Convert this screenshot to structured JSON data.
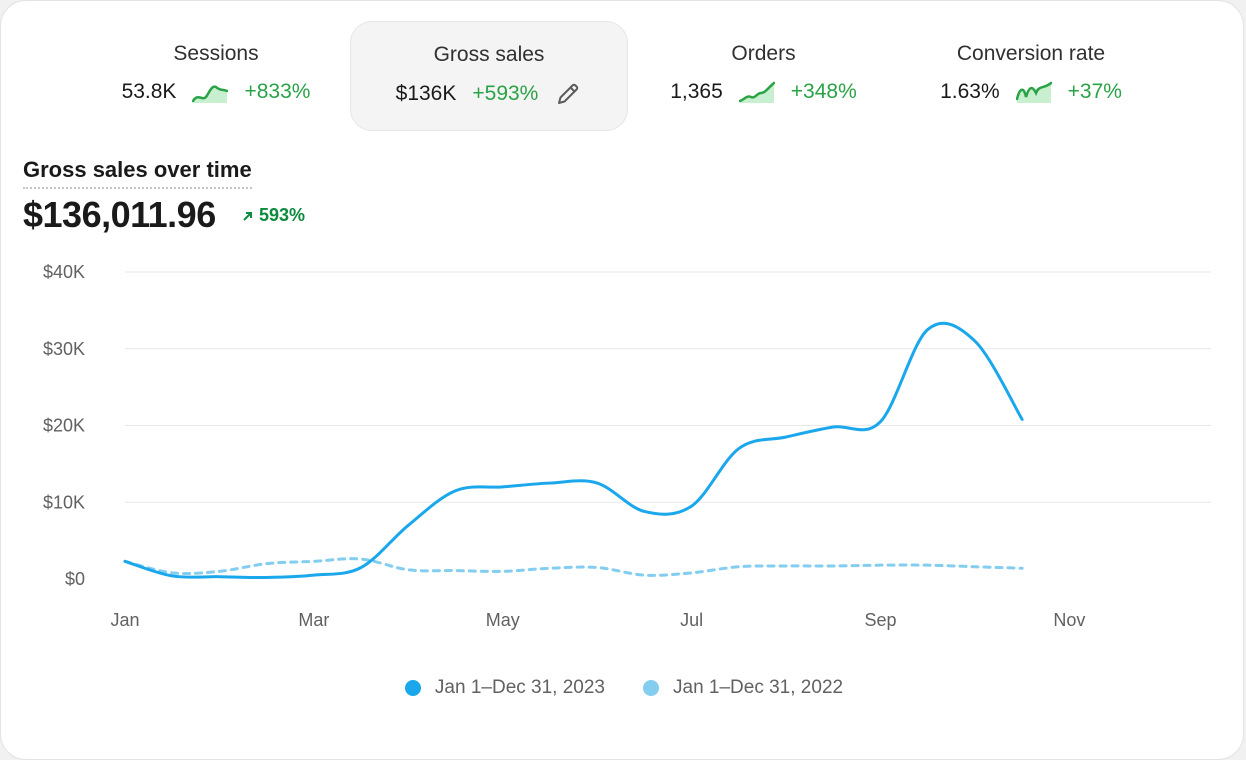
{
  "metrics": [
    {
      "label": "Sessions",
      "value": "53.8K",
      "change": "+833%",
      "active": false
    },
    {
      "label": "Gross sales",
      "value": "$136K",
      "change": "+593%",
      "active": true
    },
    {
      "label": "Orders",
      "value": "1,365",
      "change": "+348%",
      "active": false
    },
    {
      "label": "Conversion rate",
      "value": "1.63%",
      "change": "+37%",
      "active": false
    }
  ],
  "chart_title": "Gross sales over time",
  "total": "$136,011.96",
  "total_change": "593%",
  "colors": {
    "current": "#1aa7ec",
    "previous": "#82cdf0",
    "positive": "#29a346",
    "grid": "#e8e8e8"
  },
  "chart_data": {
    "type": "line",
    "title": "Gross sales over time",
    "x": [
      0,
      0.5,
      1,
      1.5,
      2,
      2.5,
      3,
      3.5,
      4,
      4.5,
      5,
      5.5,
      6,
      6.5,
      7,
      7.5,
      8,
      8.5,
      9,
      9.5,
      10,
      10.5,
      11
    ],
    "x_tick_labels": [
      "Jan",
      "Mar",
      "May",
      "Jul",
      "Sep",
      "Nov"
    ],
    "x_tick_positions": [
      0,
      2,
      4,
      6,
      8,
      10
    ],
    "y_tick_labels": [
      "$0",
      "$10K",
      "$20K",
      "$30K",
      "$40K"
    ],
    "ylim": [
      0,
      40000
    ],
    "grid": true,
    "legend_position": "bottom",
    "series": [
      {
        "name": "Jan 1–Dec 31, 2023",
        "style": "solid",
        "values": [
          2300,
          400,
          300,
          200,
          500,
          1500,
          7000,
          11500,
          12000,
          12500,
          12500,
          8800,
          9500,
          17000,
          18500,
          19800,
          20500,
          32500,
          31000,
          20800,
          null,
          null,
          null
        ]
      },
      {
        "name": "Jan 1–Dec 31, 2022",
        "style": "dashed",
        "values": [
          2300,
          800,
          1000,
          2000,
          2300,
          2600,
          1200,
          1100,
          1000,
          1400,
          1500,
          500,
          800,
          1600,
          1700,
          1700,
          1800,
          1800,
          1600,
          1400,
          null,
          null,
          null
        ]
      }
    ]
  },
  "legend": [
    "Jan 1–Dec 31, 2023",
    "Jan 1–Dec 31, 2022"
  ]
}
